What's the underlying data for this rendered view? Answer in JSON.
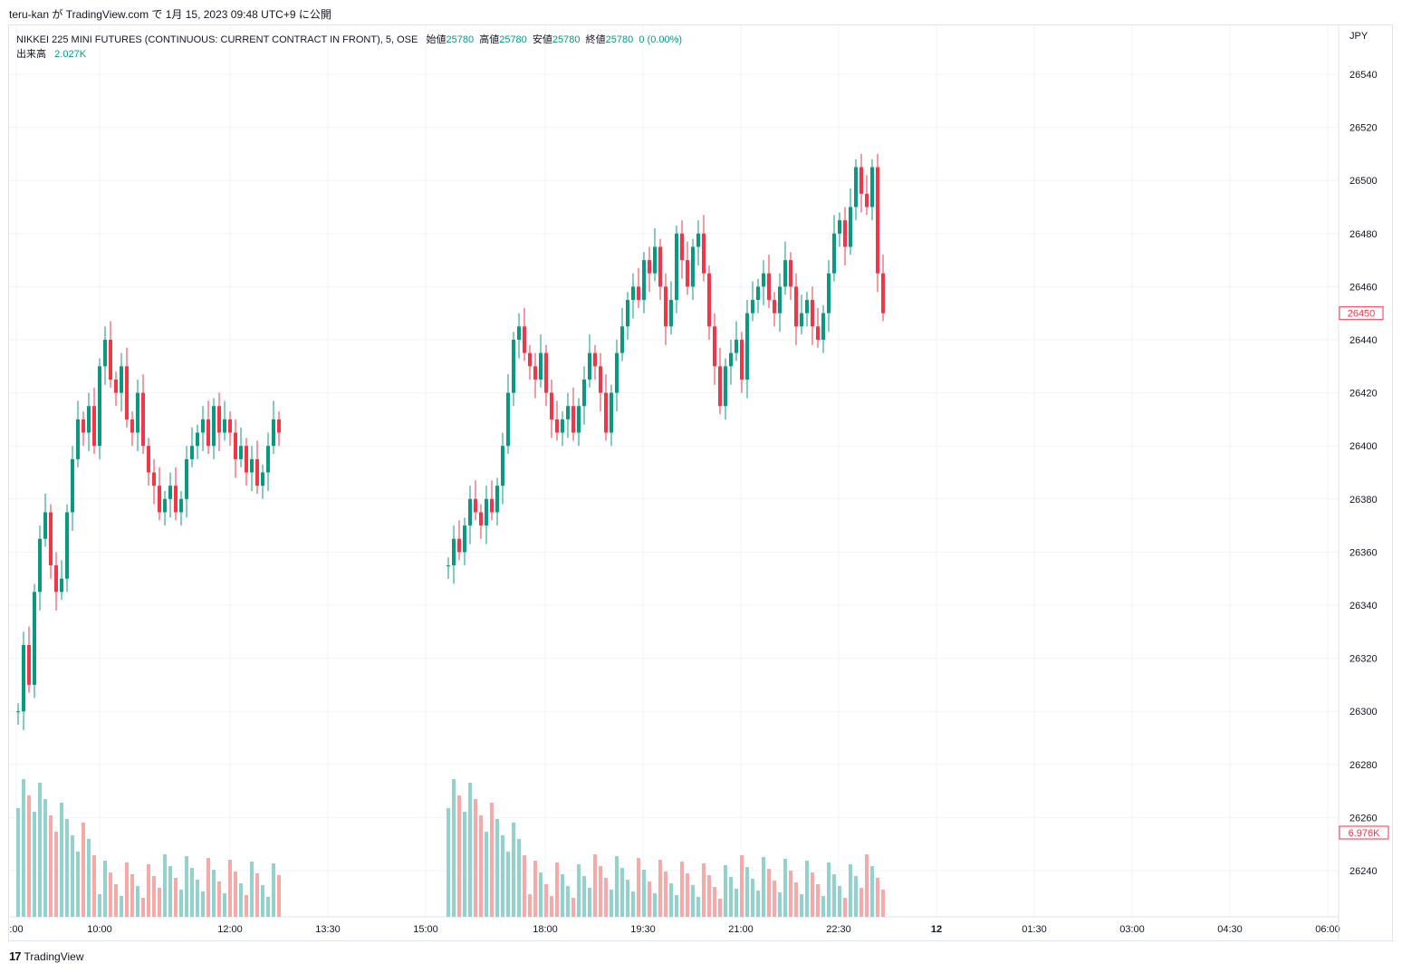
{
  "caption": "teru-kan が TradingView.com で 1月 15, 2023 09:48 UTC+9 に公開",
  "legend": {
    "symbol": "NIKKEI 225 MINI FUTURES (CONTINUOUS: CURRENT CONTRACT IN FRONT), 5, OSE",
    "open_label": "始値",
    "open": "25780",
    "high_label": "高値",
    "high": "25780",
    "low_label": "安値",
    "low": "25780",
    "close_label": "終値",
    "close": "25780",
    "change": "0 (0.00%)",
    "volume_label": "出来高",
    "volume": "2.027K"
  },
  "currency": "JPY",
  "price_badge": "26450",
  "volume_badge": "6.976K",
  "footer": {
    "brand": "TradingView"
  },
  "colors": {
    "up": "#089981",
    "down": "#f23645",
    "up_vol": "#92d2cc",
    "down_vol": "#f7a9a7",
    "grid": "#f0f3fa"
  },
  "chart_data": {
    "type": "candlestick",
    "y_ticks": [
      26540,
      26520,
      26500,
      26480,
      26460,
      26440,
      26420,
      26400,
      26380,
      26360,
      26340,
      26320,
      26300,
      26280,
      26260,
      26240
    ],
    "ylim": [
      26230,
      26550
    ],
    "x_ticks": [
      ":00",
      "10:00",
      "12:00",
      "13:30",
      "15:00",
      "18:00",
      "19:30",
      "21:00",
      "22:30",
      "12",
      "01:30",
      "03:00",
      "04:30",
      "06:00"
    ],
    "grid": true,
    "series": [
      {
        "name": "price",
        "path": [
          26300,
          26325,
          26310,
          26345,
          26365,
          26375,
          26355,
          26345,
          26350,
          26375,
          26395,
          26410,
          26405,
          26415,
          26400,
          26430,
          26440,
          26425,
          26420,
          26430,
          26410,
          26405,
          26420,
          26400,
          26390,
          26385,
          26375,
          26380,
          26385,
          26375,
          26380,
          26395,
          26400,
          26405,
          26410,
          26400,
          26415,
          26405,
          26410,
          26405,
          26395,
          26400,
          26390,
          26395,
          26385,
          26390,
          26400,
          26410,
          26405
        ]
      },
      {
        "name": "price2",
        "path": [
          26355,
          26365,
          26360,
          26370,
          26380,
          26375,
          26370,
          26380,
          26375,
          26385,
          26400,
          26420,
          26440,
          26445,
          26435,
          26430,
          26425,
          26435,
          26420,
          26410,
          26405,
          26410,
          26415,
          26405,
          26415,
          26425,
          26435,
          26430,
          26420,
          26405,
          26420,
          26435,
          26445,
          26455,
          26460,
          26455,
          26470,
          26465,
          26475,
          26460,
          26445,
          26455,
          26480,
          26470,
          26460,
          26475,
          26480,
          26465,
          26445,
          26430,
          26415,
          26430,
          26435,
          26440,
          26425,
          26450,
          26455,
          26460,
          26465,
          26455,
          26450,
          26460,
          26470,
          26460,
          26445,
          26450,
          26455,
          26445,
          26440,
          26450,
          26465,
          26480,
          26485,
          26475,
          26490,
          26505,
          26495,
          26490,
          26505,
          26465,
          26450
        ]
      }
    ]
  }
}
